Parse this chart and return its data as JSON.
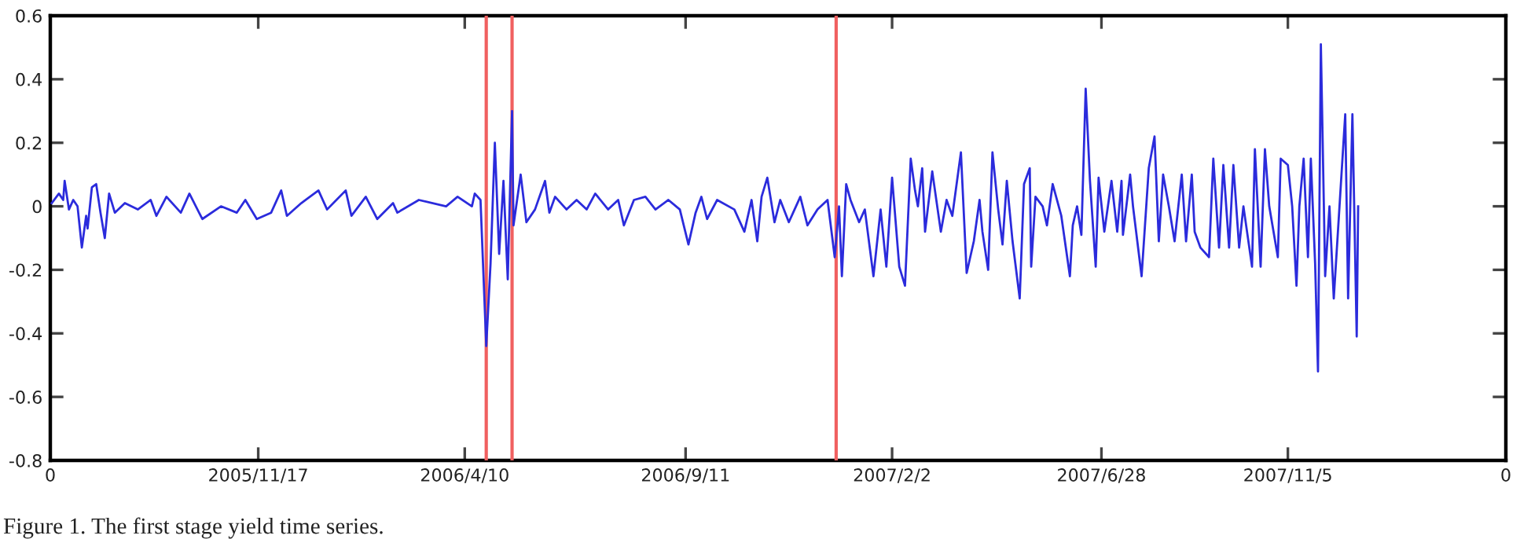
{
  "chart_data": {
    "type": "line",
    "xlim": [
      "2005-06-25",
      "2008-04-05"
    ],
    "ylim": [
      -0.8,
      0.6
    ],
    "xticks": [
      {
        "value": "2005-06-25",
        "label": "0"
      },
      {
        "value": "2005-11-17",
        "label": "2005/11/17"
      },
      {
        "value": "2006-04-10",
        "label": "2006/4/10"
      },
      {
        "value": "2006-09-11",
        "label": "2006/9/11"
      },
      {
        "value": "2007-02-02",
        "label": "2007/2/2"
      },
      {
        "value": "2007-06-28",
        "label": "2007/6/28"
      },
      {
        "value": "2007-11-05",
        "label": "2007/11/5"
      },
      {
        "value": "2008-04-05",
        "label": "0"
      }
    ],
    "yticks": [
      -0.8,
      -0.6,
      -0.4,
      -0.2,
      0,
      0.2,
      0.4,
      0.6
    ],
    "grid": false,
    "legend": false,
    "marker": "none",
    "line_style": "solid",
    "ref_lines": [
      {
        "axis": "x",
        "value": "2006-04-25",
        "color": "#f06060"
      },
      {
        "axis": "x",
        "value": "2006-05-13",
        "color": "#f06060"
      },
      {
        "axis": "x",
        "value": "2006-12-25",
        "color": "#f06060"
      }
    ],
    "annotations": [
      "Figure 1. The first stage yield time series."
    ],
    "series": [
      {
        "color": "#2b2bdc",
        "x": [
          "2005-06-26",
          "2005-07-01",
          "2005-07-04",
          "2005-07-05",
          "2005-07-08",
          "2005-07-11",
          "2005-07-14",
          "2005-07-17",
          "2005-07-20",
          "2005-07-21",
          "2005-07-24",
          "2005-07-27",
          "2005-07-30",
          "2005-08-02",
          "2005-08-05",
          "2005-08-09",
          "2005-08-16",
          "2005-08-25",
          "2005-09-03",
          "2005-09-07",
          "2005-09-14",
          "2005-09-24",
          "2005-09-30",
          "2005-10-09",
          "2005-10-22",
          "2005-11-02",
          "2005-11-08",
          "2005-11-16",
          "2005-11-26",
          "2005-12-03",
          "2005-12-07",
          "2005-12-17",
          "2005-12-29",
          "2006-01-04",
          "2006-01-17",
          "2006-01-21",
          "2006-01-31",
          "2006-02-08",
          "2006-02-19",
          "2006-02-22",
          "2006-03-09",
          "2006-03-28",
          "2006-04-05",
          "2006-04-15",
          "2006-04-17",
          "2006-04-21",
          "2006-04-25",
          "2006-04-28",
          "2006-05-01",
          "2006-05-04",
          "2006-05-07",
          "2006-05-10",
          "2006-05-13",
          "2006-05-14",
          "2006-05-19",
          "2006-05-23",
          "2006-05-29",
          "2006-06-05",
          "2006-06-08",
          "2006-06-12",
          "2006-06-20",
          "2006-06-27",
          "2006-07-04",
          "2006-07-10",
          "2006-07-19",
          "2006-07-26",
          "2006-07-30",
          "2006-08-06",
          "2006-08-14",
          "2006-08-21",
          "2006-08-30",
          "2006-09-07",
          "2006-09-13",
          "2006-09-18",
          "2006-09-22",
          "2006-09-26",
          "2006-10-03",
          "2006-10-15",
          "2006-10-22",
          "2006-10-27",
          "2006-10-31",
          "2006-11-03",
          "2006-11-07",
          "2006-11-12",
          "2006-11-16",
          "2006-11-22",
          "2006-11-26",
          "2006-11-30",
          "2006-12-05",
          "2006-12-12",
          "2006-12-19",
          "2006-12-24",
          "2006-12-27",
          "2006-12-29",
          "2007-01-01",
          "2007-01-04",
          "2007-01-10",
          "2007-01-14",
          "2007-01-20",
          "2007-01-25",
          "2007-01-29",
          "2007-02-02",
          "2007-02-07",
          "2007-02-11",
          "2007-02-15",
          "2007-02-18",
          "2007-02-20",
          "2007-02-23",
          "2007-02-25",
          "2007-03-02",
          "2007-03-08",
          "2007-03-12",
          "2007-03-16",
          "2007-03-22",
          "2007-03-26",
          "2007-03-31",
          "2007-04-04",
          "2007-04-06",
          "2007-04-10",
          "2007-04-13",
          "2007-04-17",
          "2007-04-20",
          "2007-04-23",
          "2007-04-27",
          "2007-05-02",
          "2007-05-05",
          "2007-05-09",
          "2007-05-10",
          "2007-05-13",
          "2007-05-18",
          "2007-05-21",
          "2007-05-25",
          "2007-05-31",
          "2007-06-06",
          "2007-06-08",
          "2007-06-11",
          "2007-06-14",
          "2007-06-17",
          "2007-06-20",
          "2007-06-24",
          "2007-06-26",
          "2007-06-30",
          "2007-07-05",
          "2007-07-09",
          "2007-07-12",
          "2007-07-13",
          "2007-07-18",
          "2007-07-20",
          "2007-07-26",
          "2007-07-31",
          "2007-08-04",
          "2007-08-07",
          "2007-08-10",
          "2007-08-14",
          "2007-08-18",
          "2007-08-23",
          "2007-08-26",
          "2007-08-30",
          "2007-09-01",
          "2007-09-05",
          "2007-09-11",
          "2007-09-14",
          "2007-09-18",
          "2007-09-21",
          "2007-09-25",
          "2007-09-28",
          "2007-10-02",
          "2007-10-05",
          "2007-10-11",
          "2007-10-13",
          "2007-10-17",
          "2007-10-20",
          "2007-10-23",
          "2007-10-29",
          "2007-10-31",
          "2007-11-05",
          "2007-11-08",
          "2007-11-11",
          "2007-11-13",
          "2007-11-16",
          "2007-11-19",
          "2007-11-21",
          "2007-11-24",
          "2007-11-26",
          "2007-11-28",
          "2007-12-01",
          "2007-12-04",
          "2007-12-07",
          "2007-12-11",
          "2007-12-15",
          "2007-12-17",
          "2007-12-20",
          "2007-12-23",
          "2007-12-24"
        ],
        "values": [
          0.01,
          0.04,
          0.02,
          0.08,
          -0.01,
          0.02,
          0,
          -0.13,
          -0.03,
          -0.07,
          0.06,
          0.07,
          -0.02,
          -0.1,
          0.04,
          -0.02,
          0.01,
          -0.01,
          0.02,
          -0.03,
          0.03,
          -0.02,
          0.04,
          -0.04,
          0,
          -0.02,
          0.02,
          -0.04,
          -0.02,
          0.05,
          -0.03,
          0.01,
          0.05,
          -0.01,
          0.05,
          -0.03,
          0.03,
          -0.04,
          0.01,
          -0.02,
          0.02,
          0,
          0.03,
          0,
          0.04,
          0.02,
          -0.44,
          -0.18,
          0.2,
          -0.15,
          0.08,
          -0.23,
          0.3,
          -0.06,
          0.1,
          -0.05,
          -0.01,
          0.08,
          -0.02,
          0.03,
          -0.01,
          0.02,
          -0.01,
          0.04,
          -0.01,
          0.02,
          -0.06,
          0.02,
          0.03,
          -0.01,
          0.02,
          -0.01,
          -0.12,
          -0.02,
          0.03,
          -0.04,
          0.02,
          -0.01,
          -0.08,
          0.02,
          -0.11,
          0.03,
          0.09,
          -0.05,
          0.02,
          -0.05,
          -0.01,
          0.03,
          -0.06,
          -0.01,
          0.02,
          -0.16,
          0,
          -0.22,
          0.07,
          0.02,
          -0.05,
          -0.01,
          -0.22,
          -0.01,
          -0.19,
          0.09,
          -0.19,
          -0.25,
          0.15,
          0.05,
          0,
          0.12,
          -0.08,
          0.11,
          -0.08,
          0.02,
          -0.03,
          0.17,
          -0.21,
          -0.11,
          0.02,
          -0.08,
          -0.2,
          0.17,
          -0.01,
          -0.12,
          0.08,
          -0.11,
          -0.29,
          0.07,
          0.12,
          -0.19,
          0.03,
          0,
          -0.06,
          0.07,
          -0.03,
          -0.22,
          -0.06,
          0,
          -0.09,
          0.37,
          0.08,
          -0.19,
          0.09,
          -0.08,
          0.08,
          -0.08,
          0.08,
          -0.09,
          0.1,
          0,
          -0.22,
          0.12,
          0.22,
          -0.11,
          0.1,
          0,
          -0.11,
          0.1,
          -0.11,
          0.1,
          -0.08,
          -0.13,
          -0.16,
          0.15,
          -0.13,
          0.13,
          -0.13,
          0.13,
          -0.13,
          0,
          -0.19,
          0.18,
          -0.19,
          0.18,
          0,
          -0.16,
          0.15,
          0.13,
          0,
          -0.25,
          0,
          0.15,
          -0.16,
          0.15,
          -0.18,
          -0.52,
          0.51,
          -0.22,
          0,
          -0.29,
          0,
          0.29,
          -0.29,
          0.29,
          -0.41,
          0
        ]
      }
    ]
  }
}
